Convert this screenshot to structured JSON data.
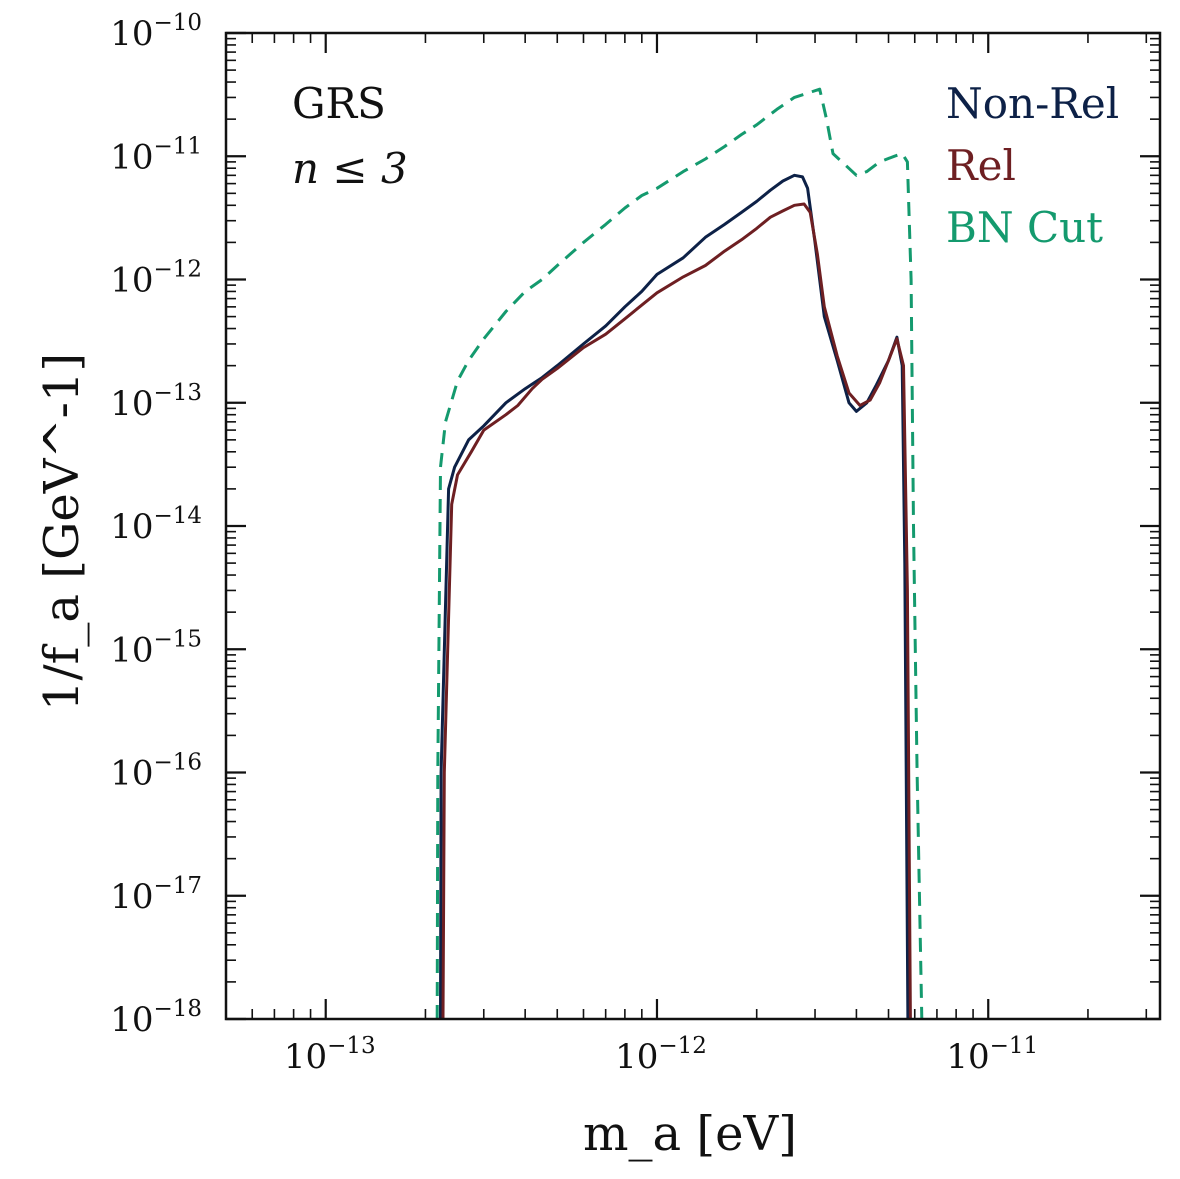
{
  "chart_data": {
    "type": "line",
    "x_scale": "log",
    "y_scale": "log",
    "xlim": [
      5e-14,
      3.3e-11
    ],
    "ylim": [
      1e-18,
      1e-10
    ],
    "xlabel": "m_a [eV]",
    "ylabel": "1/f_a  [GeV^-1]",
    "x_ticks": [
      {
        "value": 1e-13,
        "base": "10",
        "exp": "−13"
      },
      {
        "value": 1e-12,
        "base": "10",
        "exp": "−12"
      },
      {
        "value": 1e-11,
        "base": "10",
        "exp": "−11"
      }
    ],
    "y_ticks": [
      {
        "value": 1e-10,
        "base": "10",
        "exp": "−10"
      },
      {
        "value": 1e-11,
        "base": "10",
        "exp": "−11"
      },
      {
        "value": 1e-12,
        "base": "10",
        "exp": "−12"
      },
      {
        "value": 1e-13,
        "base": "10",
        "exp": "−13"
      },
      {
        "value": 1e-14,
        "base": "10",
        "exp": "−14"
      },
      {
        "value": 1e-15,
        "base": "10",
        "exp": "−15"
      },
      {
        "value": 1e-16,
        "base": "10",
        "exp": "−16"
      },
      {
        "value": 1e-17,
        "base": "10",
        "exp": "−17"
      },
      {
        "value": 1e-18,
        "base": "10",
        "exp": "−18"
      }
    ],
    "annotations": [
      "GRS",
      "n ≤ 3"
    ],
    "legend_position": "top-right",
    "grid": false,
    "series": [
      {
        "name": "Non-Rel",
        "color": "#0d2147",
        "style": "solid",
        "points": [
          [
            2.22e-13,
            1e-18
          ],
          [
            2.23e-13,
            1e-16
          ],
          [
            2.35e-13,
            2e-14
          ],
          [
            2.45e-13,
            3e-14
          ],
          [
            2.7e-13,
            5e-14
          ],
          [
            3e-13,
            6.5e-14
          ],
          [
            3.5e-13,
            1e-13
          ],
          [
            4e-13,
            1.3e-13
          ],
          [
            4.5e-13,
            1.6e-13
          ],
          [
            5e-13,
            2e-13
          ],
          [
            6e-13,
            3e-13
          ],
          [
            7e-13,
            4.2e-13
          ],
          [
            8e-13,
            6e-13
          ],
          [
            9e-13,
            8e-13
          ],
          [
            1e-12,
            1.1e-12
          ],
          [
            1.2e-12,
            1.5e-12
          ],
          [
            1.4e-12,
            2.2e-12
          ],
          [
            1.6e-12,
            2.8e-12
          ],
          [
            1.8e-12,
            3.5e-12
          ],
          [
            2e-12,
            4.3e-12
          ],
          [
            2.2e-12,
            5.3e-12
          ],
          [
            2.4e-12,
            6.3e-12
          ],
          [
            2.6e-12,
            7e-12
          ],
          [
            2.75e-12,
            6.8e-12
          ],
          [
            2.85e-12,
            5.5e-12
          ],
          [
            3e-12,
            2e-12
          ],
          [
            3.2e-12,
            5e-13
          ],
          [
            3.5e-12,
            2.2e-13
          ],
          [
            3.8e-12,
            1e-13
          ],
          [
            4e-12,
            8.5e-14
          ],
          [
            4.3e-12,
            1e-13
          ],
          [
            4.6e-12,
            1.4e-13
          ],
          [
            5e-12,
            2.2e-13
          ],
          [
            5.3e-12,
            3.4e-13
          ],
          [
            5.5e-12,
            2e-13
          ],
          [
            5.6e-12,
            5e-15
          ],
          [
            5.72e-12,
            1e-18
          ]
        ]
      },
      {
        "name": "Rel",
        "color": "#6e1f22",
        "style": "solid",
        "points": [
          [
            2.26e-13,
            1e-18
          ],
          [
            2.28e-13,
            1e-16
          ],
          [
            2.4e-13,
            1.5e-14
          ],
          [
            2.5e-13,
            2.6e-14
          ],
          [
            2.75e-13,
            4e-14
          ],
          [
            3e-13,
            6e-14
          ],
          [
            3.5e-13,
            8e-14
          ],
          [
            3.8e-13,
            9.5e-14
          ],
          [
            4.2e-13,
            1.3e-13
          ],
          [
            4.5e-13,
            1.55e-13
          ],
          [
            5e-13,
            1.9e-13
          ],
          [
            6e-13,
            2.8e-13
          ],
          [
            7e-13,
            3.6e-13
          ],
          [
            8e-13,
            4.8e-13
          ],
          [
            9e-13,
            6.2e-13
          ],
          [
            1e-12,
            7.8e-13
          ],
          [
            1.2e-12,
            1.05e-12
          ],
          [
            1.4e-12,
            1.3e-12
          ],
          [
            1.6e-12,
            1.7e-12
          ],
          [
            1.8e-12,
            2.1e-12
          ],
          [
            2e-12,
            2.6e-12
          ],
          [
            2.2e-12,
            3.2e-12
          ],
          [
            2.4e-12,
            3.6e-12
          ],
          [
            2.6e-12,
            4e-12
          ],
          [
            2.78e-12,
            4.1e-12
          ],
          [
            2.9e-12,
            3.5e-12
          ],
          [
            3.05e-12,
            1.6e-12
          ],
          [
            3.2e-12,
            6e-13
          ],
          [
            3.5e-12,
            2.4e-13
          ],
          [
            3.8e-12,
            1.2e-13
          ],
          [
            4.1e-12,
            9.5e-14
          ],
          [
            4.4e-12,
            1.05e-13
          ],
          [
            4.7e-12,
            1.45e-13
          ],
          [
            5e-12,
            2.2e-13
          ],
          [
            5.3e-12,
            3.3e-13
          ],
          [
            5.55e-12,
            2e-13
          ],
          [
            5.7e-12,
            3e-15
          ],
          [
            5.82e-12,
            1e-18
          ]
        ]
      },
      {
        "name": "BN Cut",
        "color": "#149a6e",
        "style": "dashed",
        "points": [
          [
            2.17e-13,
            1e-18
          ],
          [
            2.18e-13,
            1e-16
          ],
          [
            2.22e-13,
            3e-14
          ],
          [
            2.3e-13,
            7e-14
          ],
          [
            2.5e-13,
            1.5e-13
          ],
          [
            2.7e-13,
            2.2e-13
          ],
          [
            3e-13,
            3.3e-13
          ],
          [
            3.5e-13,
            5.5e-13
          ],
          [
            4e-13,
            8e-13
          ],
          [
            4.5e-13,
            1e-12
          ],
          [
            5e-13,
            1.3e-12
          ],
          [
            6e-13,
            2e-12
          ],
          [
            7e-13,
            2.8e-12
          ],
          [
            8e-13,
            3.8e-12
          ],
          [
            9e-13,
            4.8e-12
          ],
          [
            1e-12,
            5.5e-12
          ],
          [
            1.2e-12,
            7.5e-12
          ],
          [
            1.4e-12,
            9.5e-12
          ],
          [
            1.6e-12,
            1.2e-11
          ],
          [
            1.8e-12,
            1.5e-11
          ],
          [
            2e-12,
            1.8e-11
          ],
          [
            2.3e-12,
            2.4e-11
          ],
          [
            2.6e-12,
            3e-11
          ],
          [
            2.9e-12,
            3.3e-11
          ],
          [
            3.1e-12,
            3.5e-11
          ],
          [
            3.25e-12,
            2e-11
          ],
          [
            3.4e-12,
            1.05e-11
          ],
          [
            3.7e-12,
            8.5e-12
          ],
          [
            4e-12,
            7e-12
          ],
          [
            4.3e-12,
            7.5e-12
          ],
          [
            4.7e-12,
            9e-12
          ],
          [
            5.2e-12,
            1e-11
          ],
          [
            5.5e-12,
            1.05e-11
          ],
          [
            5.7e-12,
            9e-12
          ],
          [
            5.85e-12,
            1e-12
          ],
          [
            5.95e-12,
            1e-14
          ],
          [
            6.1e-12,
            1e-16
          ],
          [
            6.3e-12,
            1e-18
          ]
        ]
      }
    ]
  }
}
